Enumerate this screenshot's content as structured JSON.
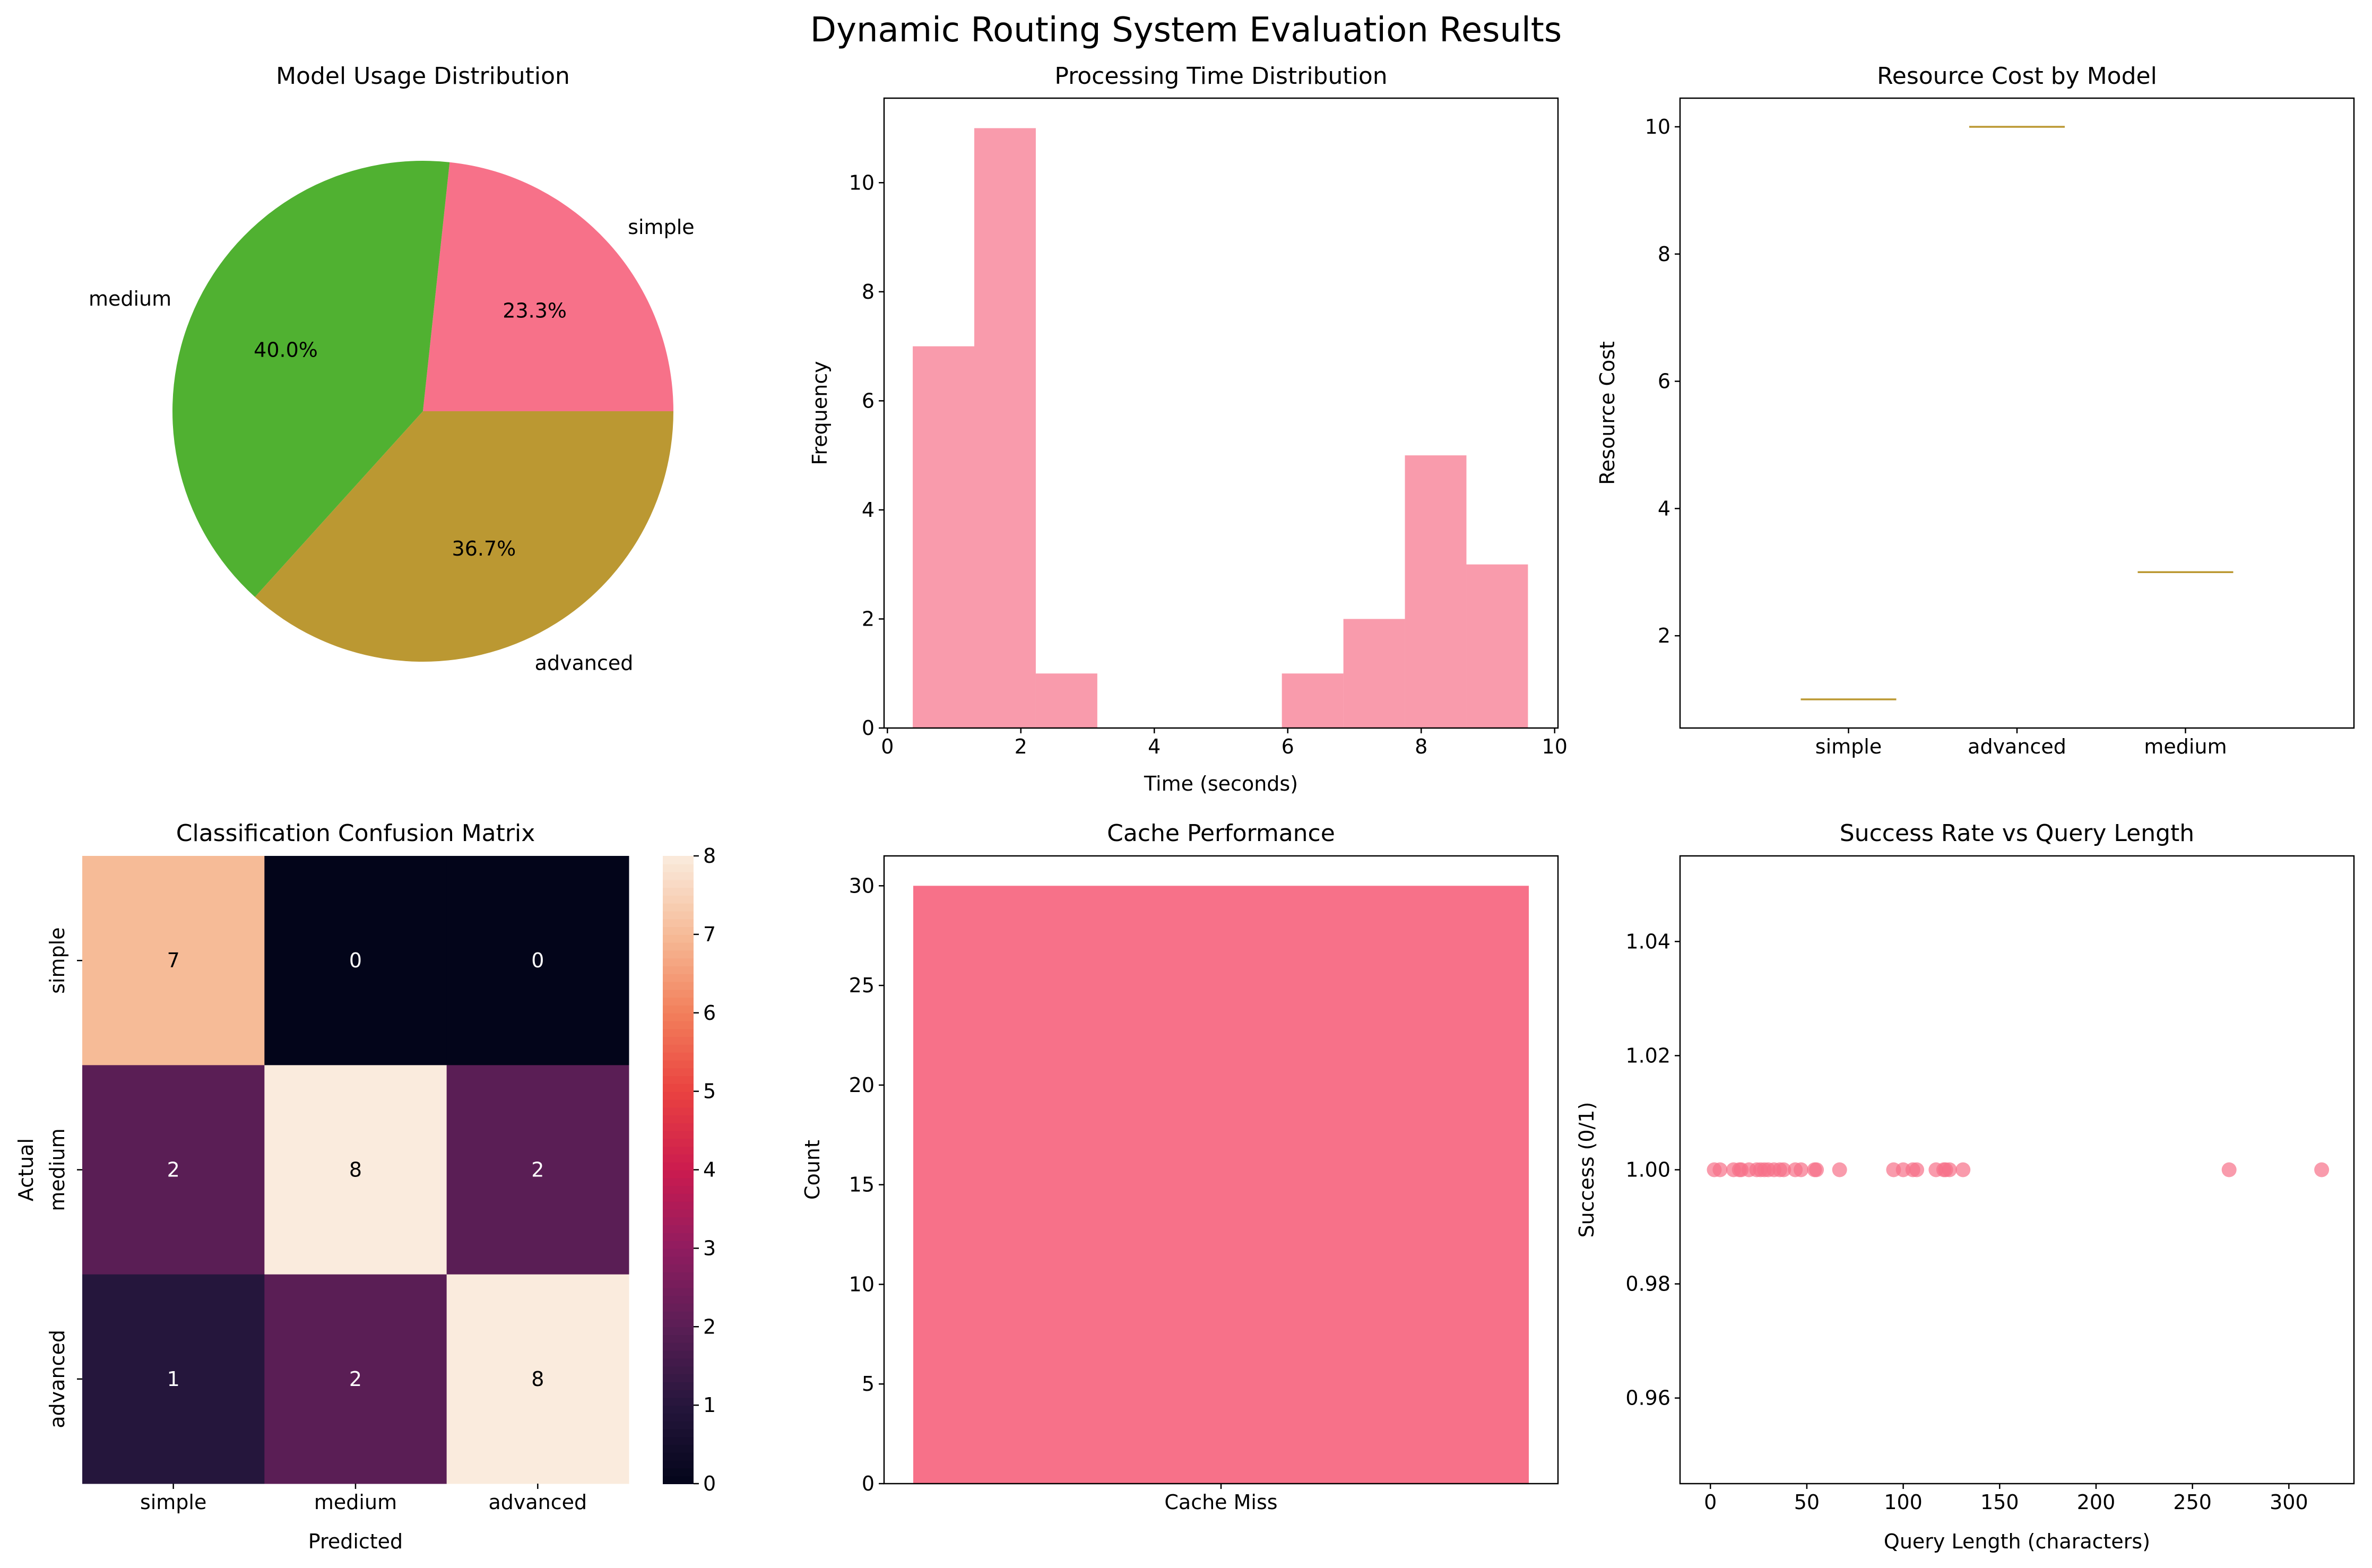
{
  "figure": {
    "title": "Dynamic Routing System Evaluation Results"
  },
  "chart_data": [
    {
      "type": "pie",
      "title": "Model Usage Distribution",
      "labels": [
        "simple",
        "medium",
        "advanced"
      ],
      "values": [
        23.3,
        40.0,
        36.7
      ],
      "value_labels": [
        "23.3%",
        "40.0%",
        "36.7%"
      ],
      "colors": [
        "#f77189",
        "#50b131",
        "#bb9832"
      ]
    },
    {
      "type": "bar",
      "subtype": "histogram",
      "title": "Processing Time Distribution",
      "xlabel": "Time (seconds)",
      "ylabel": "Frequency",
      "bin_start": 0.38,
      "bin_width": 0.922,
      "counts": [
        7,
        11,
        1,
        0,
        0,
        0,
        1,
        2,
        5,
        3
      ],
      "xlim": [
        -0.05,
        10.05
      ],
      "ylim": [
        0,
        11.55
      ],
      "xticks": [
        0,
        2,
        4,
        6,
        8,
        10
      ],
      "yticks": [
        0,
        2,
        4,
        6,
        8,
        10
      ],
      "color": "#f77189"
    },
    {
      "type": "box",
      "title": "Resource Cost by Model",
      "xlabel": "",
      "ylabel": "Resource Cost",
      "categories": [
        "simple",
        "advanced",
        "medium"
      ],
      "values": [
        1,
        10,
        3
      ],
      "ylim": [
        0.55,
        10.45
      ],
      "yticks": [
        2,
        4,
        6,
        8,
        10
      ],
      "color": "#bb9832"
    },
    {
      "type": "heatmap",
      "title": "Classification Confusion Matrix",
      "xlabel": "Predicted",
      "ylabel": "Actual",
      "x_categories": [
        "simple",
        "medium",
        "advanced"
      ],
      "y_categories": [
        "simple",
        "medium",
        "advanced"
      ],
      "matrix": [
        [
          7,
          0,
          0
        ],
        [
          2,
          8,
          2
        ],
        [
          1,
          2,
          8
        ]
      ],
      "colorbar_ticks": [
        0,
        1,
        2,
        3,
        4,
        5,
        6,
        7,
        8
      ],
      "vmin": 0,
      "vmax": 8
    },
    {
      "type": "bar",
      "title": "Cache Performance",
      "xlabel": "",
      "ylabel": "Count",
      "categories": [
        "Cache Miss"
      ],
      "values": [
        30
      ],
      "ylim": [
        0,
        31.5
      ],
      "yticks": [
        0,
        5,
        10,
        15,
        20,
        25,
        30
      ],
      "color": "#f77189"
    },
    {
      "type": "scatter",
      "title": "Success Rate vs Query Length",
      "xlabel": "Query Length (characters)",
      "ylabel": "Success (0/1)",
      "x": [
        2,
        5,
        12,
        15,
        16,
        20,
        24,
        26,
        28,
        30,
        33,
        36,
        38,
        44,
        47,
        54,
        55,
        67,
        95,
        100,
        105,
        107,
        117,
        121,
        122,
        124,
        131,
        269,
        317
      ],
      "y": [
        1,
        1,
        1,
        1,
        1,
        1,
        1,
        1,
        1,
        1,
        1,
        1,
        1,
        1,
        1,
        1,
        1,
        1,
        1,
        1,
        1,
        1,
        1,
        1,
        1,
        1,
        1,
        1,
        1
      ],
      "xlim": [
        -15.75,
        333.75
      ],
      "ylim": [
        0.945,
        1.055
      ],
      "xticks": [
        0,
        50,
        100,
        150,
        200,
        250,
        300
      ],
      "yticks": [
        0.96,
        0.98,
        1.0,
        1.02,
        1.04
      ],
      "ytick_labels": [
        "0.96",
        "0.98",
        "1.00",
        "1.02",
        "1.04"
      ],
      "color": "#f77189"
    }
  ]
}
